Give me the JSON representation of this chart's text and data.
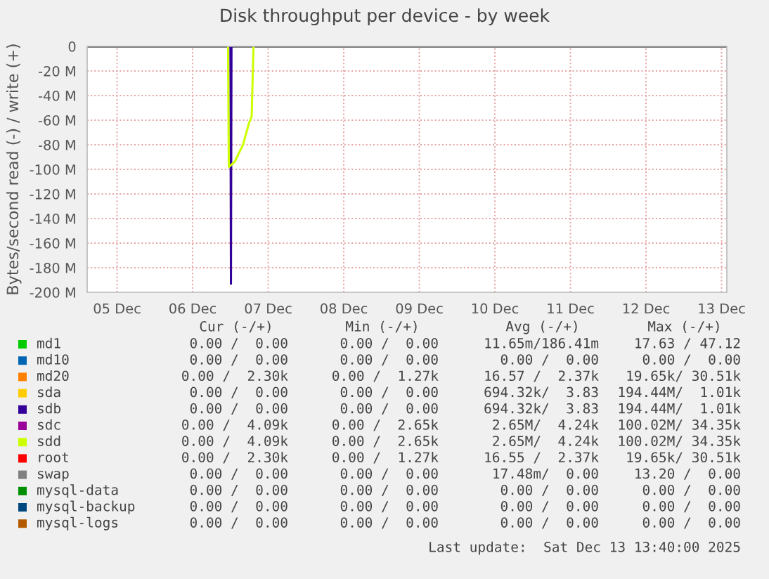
{
  "chart_data": {
    "type": "line",
    "title": "Disk throughput per device - by week",
    "ylabel": "Bytes/second read (-) / write (+)",
    "xlim": [
      "2025-12-05T02:30",
      "2025-12-13T13:40"
    ],
    "ylim": [
      -200,
      0
    ],
    "xticks": [
      {
        "value": "2025-12-05T12:00",
        "label": "05 Dec"
      },
      {
        "value": "2025-12-06T12:00",
        "label": "06 Dec"
      },
      {
        "value": "2025-12-07T12:00",
        "label": "07 Dec"
      },
      {
        "value": "2025-12-08T12:00",
        "label": "08 Dec"
      },
      {
        "value": "2025-12-09T12:00",
        "label": "09 Dec"
      },
      {
        "value": "2025-12-10T12:00",
        "label": "10 Dec"
      },
      {
        "value": "2025-12-11T12:00",
        "label": "11 Dec"
      },
      {
        "value": "2025-12-12T12:00",
        "label": "12 Dec"
      },
      {
        "value": "2025-12-13T12:00",
        "label": "13 Dec"
      }
    ],
    "yticks": [
      {
        "value": -200,
        "label": "-200 M"
      },
      {
        "value": -180,
        "label": "-180 M"
      },
      {
        "value": -160,
        "label": "-160 M"
      },
      {
        "value": -140,
        "label": "-140 M"
      },
      {
        "value": -120,
        "label": "-120 M"
      },
      {
        "value": -100,
        "label": "-100 M"
      },
      {
        "value": -80,
        "label": "-80 M"
      },
      {
        "value": -60,
        "label": "-60 M"
      },
      {
        "value": -40,
        "label": "-40 M"
      },
      {
        "value": -20,
        "label": "-20 M"
      },
      0
    ],
    "grid": true,
    "legend": "bottom",
    "line_style": "solid",
    "series": [
      {
        "name": "md1",
        "color": "#00cc00"
      },
      {
        "name": "md10",
        "color": "#0066b3"
      },
      {
        "name": "md20",
        "color": "#ff8000"
      },
      {
        "name": "sda",
        "color": "#ffcc00"
      },
      {
        "name": "sdb",
        "color": "#330099",
        "x": [
          "2025-12-07T00:00",
          "2025-12-07T00:10",
          "2025-12-07T00:20"
        ],
        "values": [
          0,
          -193,
          0
        ]
      },
      {
        "name": "sdc",
        "color": "#990099"
      },
      {
        "name": "sdd",
        "color": "#ccff00",
        "x": [
          "2025-12-06T23:15",
          "2025-12-06T23:30",
          "2025-12-07T01:20",
          "2025-12-07T04:00",
          "2025-12-07T05:50",
          "2025-12-07T06:45",
          "2025-12-07T07:20"
        ],
        "values": [
          0,
          -98,
          -94,
          -80,
          -63,
          -57,
          0
        ]
      },
      {
        "name": "root",
        "color": "#ff0000"
      },
      {
        "name": "swap",
        "color": "#808080"
      },
      {
        "name": "mysql-data",
        "color": "#008f00"
      },
      {
        "name": "mysql-backup",
        "color": "#00487d"
      },
      {
        "name": "mysql-logs",
        "color": "#b35a00"
      }
    ],
    "ref_lines": [
      {
        "axis": "y",
        "value": 0,
        "color": "#000000"
      }
    ],
    "annotations": [
      "Cur (-/+)",
      "Min (-/+)",
      "Avg (-/+)",
      "Max (-/+)",
      "0.00 /  0.00",
      "0.00 /  0.00",
      "11.65m/186.41m",
      "17.63 / 47.12",
      "0.00 /  0.00",
      "0.00 /  0.00",
      "0.00 /  0.00",
      "0.00 /  0.00",
      "0.00 /  2.30k",
      "0.00 /  1.27k",
      "16.57 /  2.37k",
      "19.65k/ 30.51k",
      "0.00 /  0.00",
      "0.00 /  0.00",
      "694.32k/  3.83",
      "194.44M/  1.01k",
      "0.00 /  0.00",
      "0.00 /  0.00",
      "694.32k/  3.83",
      "194.44M/  1.01k",
      "0.00 /  4.09k",
      "0.00 /  2.65k",
      "2.65M/  4.24k",
      "100.02M/ 34.35k",
      "0.00 /  4.09k",
      "0.00 /  2.65k",
      "2.65M/  4.24k",
      "100.02M/ 34.35k",
      "0.00 /  2.30k",
      "0.00 /  1.27k",
      "16.55 /  2.37k",
      "19.65k/ 30.51k",
      "0.00 /  0.00",
      "0.00 /  0.00",
      "17.48m/  0.00",
      "13.20 /  0.00",
      "0.00 /  0.00",
      "0.00 /  0.00",
      "0.00 /  0.00",
      "0.00 /  0.00",
      "0.00 /  0.00",
      "0.00 /  0.00",
      "0.00 /  0.00",
      "0.00 /  0.00",
      "0.00 /  0.00",
      "0.00 /  0.00",
      "0.00 /  0.00",
      "0.00 /  0.00",
      "Last update:  Sat Dec 13 13:40:00 2025"
    ]
  }
}
